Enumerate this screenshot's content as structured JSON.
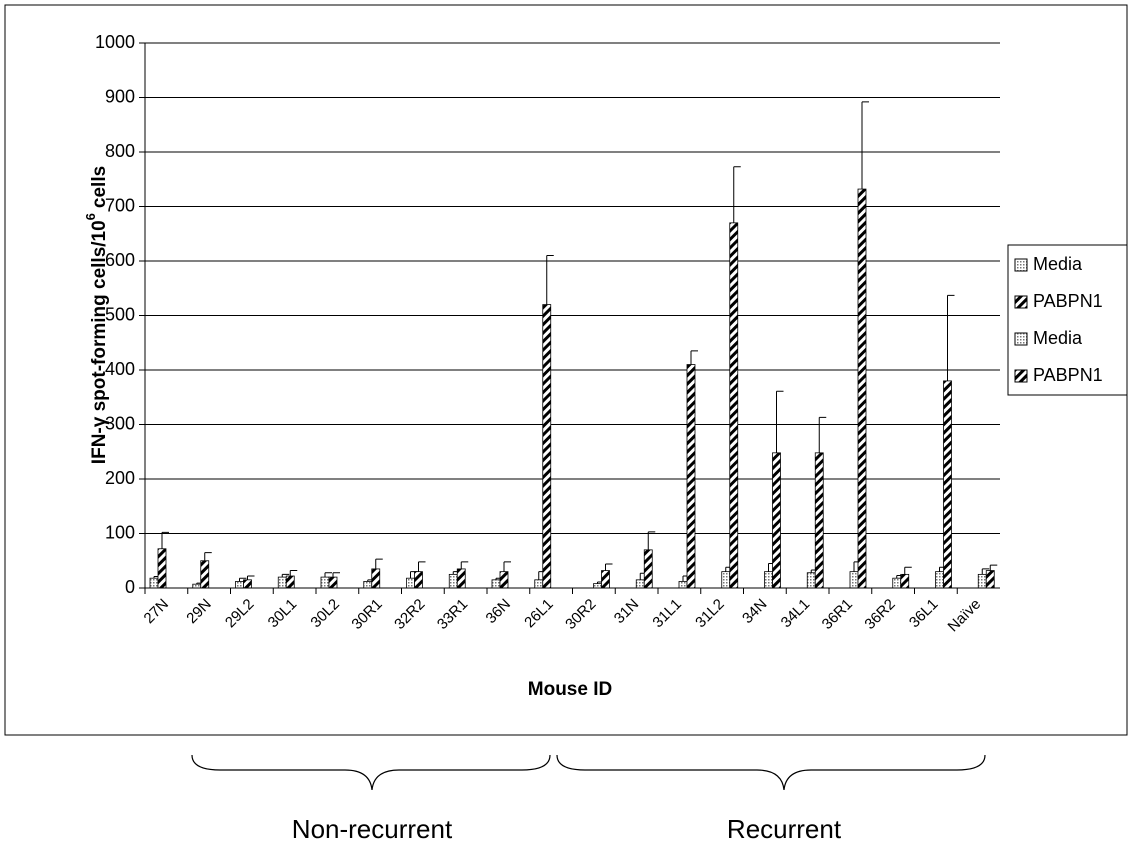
{
  "chart_data": {
    "type": "bar",
    "x_label": "Mouse ID",
    "y_label": [
      "IFN-γ spot-forming cells/10",
      "6",
      "cells"
    ],
    "categories": [
      "27N",
      "29N",
      "29L2",
      "30L1",
      "30L2",
      "30R1",
      "32R2",
      "33R1",
      "36N",
      "26L1",
      "30R2",
      "31N",
      "31L1",
      "31L2",
      "34N",
      "34L1",
      "36R1",
      "36R2",
      "36L1",
      "Naïve"
    ],
    "series": [
      {
        "name": "Media",
        "color": "#c8c8c8",
        "pattern": "dots",
        "values": [
          18,
          7,
          12,
          20,
          20,
          12,
          18,
          25,
          15,
          15,
          null,
          null,
          null,
          null,
          null,
          null,
          null,
          null,
          null,
          null
        ],
        "errors": [
          3,
          2,
          6,
          5,
          8,
          3,
          12,
          5,
          3,
          15,
          null,
          null,
          null,
          null,
          null,
          null,
          null,
          null,
          null,
          null
        ]
      },
      {
        "name": "PABPN1",
        "color": "#000000",
        "pattern": "hatch",
        "values": [
          72,
          50,
          15,
          22,
          20,
          35,
          30,
          35,
          30,
          520,
          null,
          null,
          null,
          null,
          null,
          null,
          null,
          null,
          null,
          null
        ],
        "errors": [
          30,
          15,
          7,
          10,
          8,
          18,
          18,
          13,
          18,
          90,
          null,
          null,
          null,
          null,
          null,
          null,
          null,
          null,
          null,
          null
        ]
      },
      {
        "name": "Media",
        "color": "#c8c8c8",
        "pattern": "dots",
        "values": [
          null,
          null,
          null,
          null,
          null,
          null,
          null,
          null,
          null,
          null,
          8,
          15,
          12,
          30,
          30,
          28,
          30,
          18,
          30,
          25
        ],
        "errors": [
          null,
          null,
          null,
          null,
          null,
          null,
          null,
          null,
          null,
          null,
          3,
          12,
          10,
          8,
          15,
          5,
          18,
          5,
          8,
          10
        ]
      },
      {
        "name": "PABPN1",
        "color": "#000000",
        "pattern": "hatch",
        "values": [
          null,
          null,
          null,
          null,
          null,
          null,
          null,
          null,
          null,
          null,
          32,
          70,
          410,
          670,
          248,
          248,
          732,
          25,
          380,
          32
        ],
        "errors": [
          null,
          null,
          null,
          null,
          null,
          null,
          null,
          null,
          null,
          null,
          12,
          33,
          25,
          103,
          113,
          65,
          160,
          13,
          157,
          10
        ]
      }
    ],
    "groups": [
      "Non-recurrent",
      "Recurrent"
    ],
    "ylim": [
      0,
      1000
    ],
    "yticks": [
      0,
      100,
      200,
      300,
      400,
      500,
      600,
      700,
      800,
      900,
      1000
    ],
    "grid": true,
    "legend": "right"
  }
}
